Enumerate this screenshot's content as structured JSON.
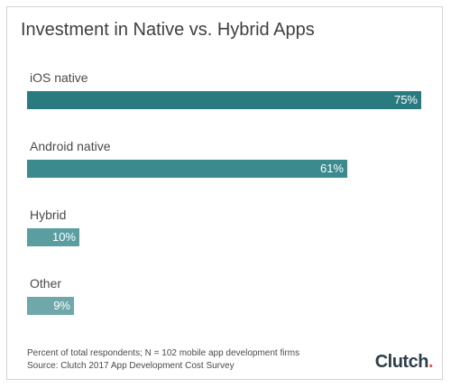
{
  "chart_data": {
    "type": "bar",
    "orientation": "horizontal",
    "title": "Investment in Native vs. Hybrid Apps",
    "categories": [
      "iOS native",
      "Android native",
      "Hybrid",
      "Other"
    ],
    "values": [
      75,
      61,
      10,
      9
    ],
    "value_labels": [
      "75%",
      "61%",
      "10%",
      "9%"
    ],
    "xlim": [
      0,
      75
    ],
    "grid": false,
    "legend": "none",
    "colors": [
      "#2a7b80",
      "#3a8a8e",
      "#5b9ea2",
      "#6fa7aa"
    ]
  },
  "footnote": {
    "line1": "Percent of total respondents; N = 102 mobile app development firms",
    "line2": "Source: Clutch 2017 App Development Cost Survey"
  },
  "logo": {
    "text": "Clutch",
    "dot_color": "#e3584a"
  }
}
